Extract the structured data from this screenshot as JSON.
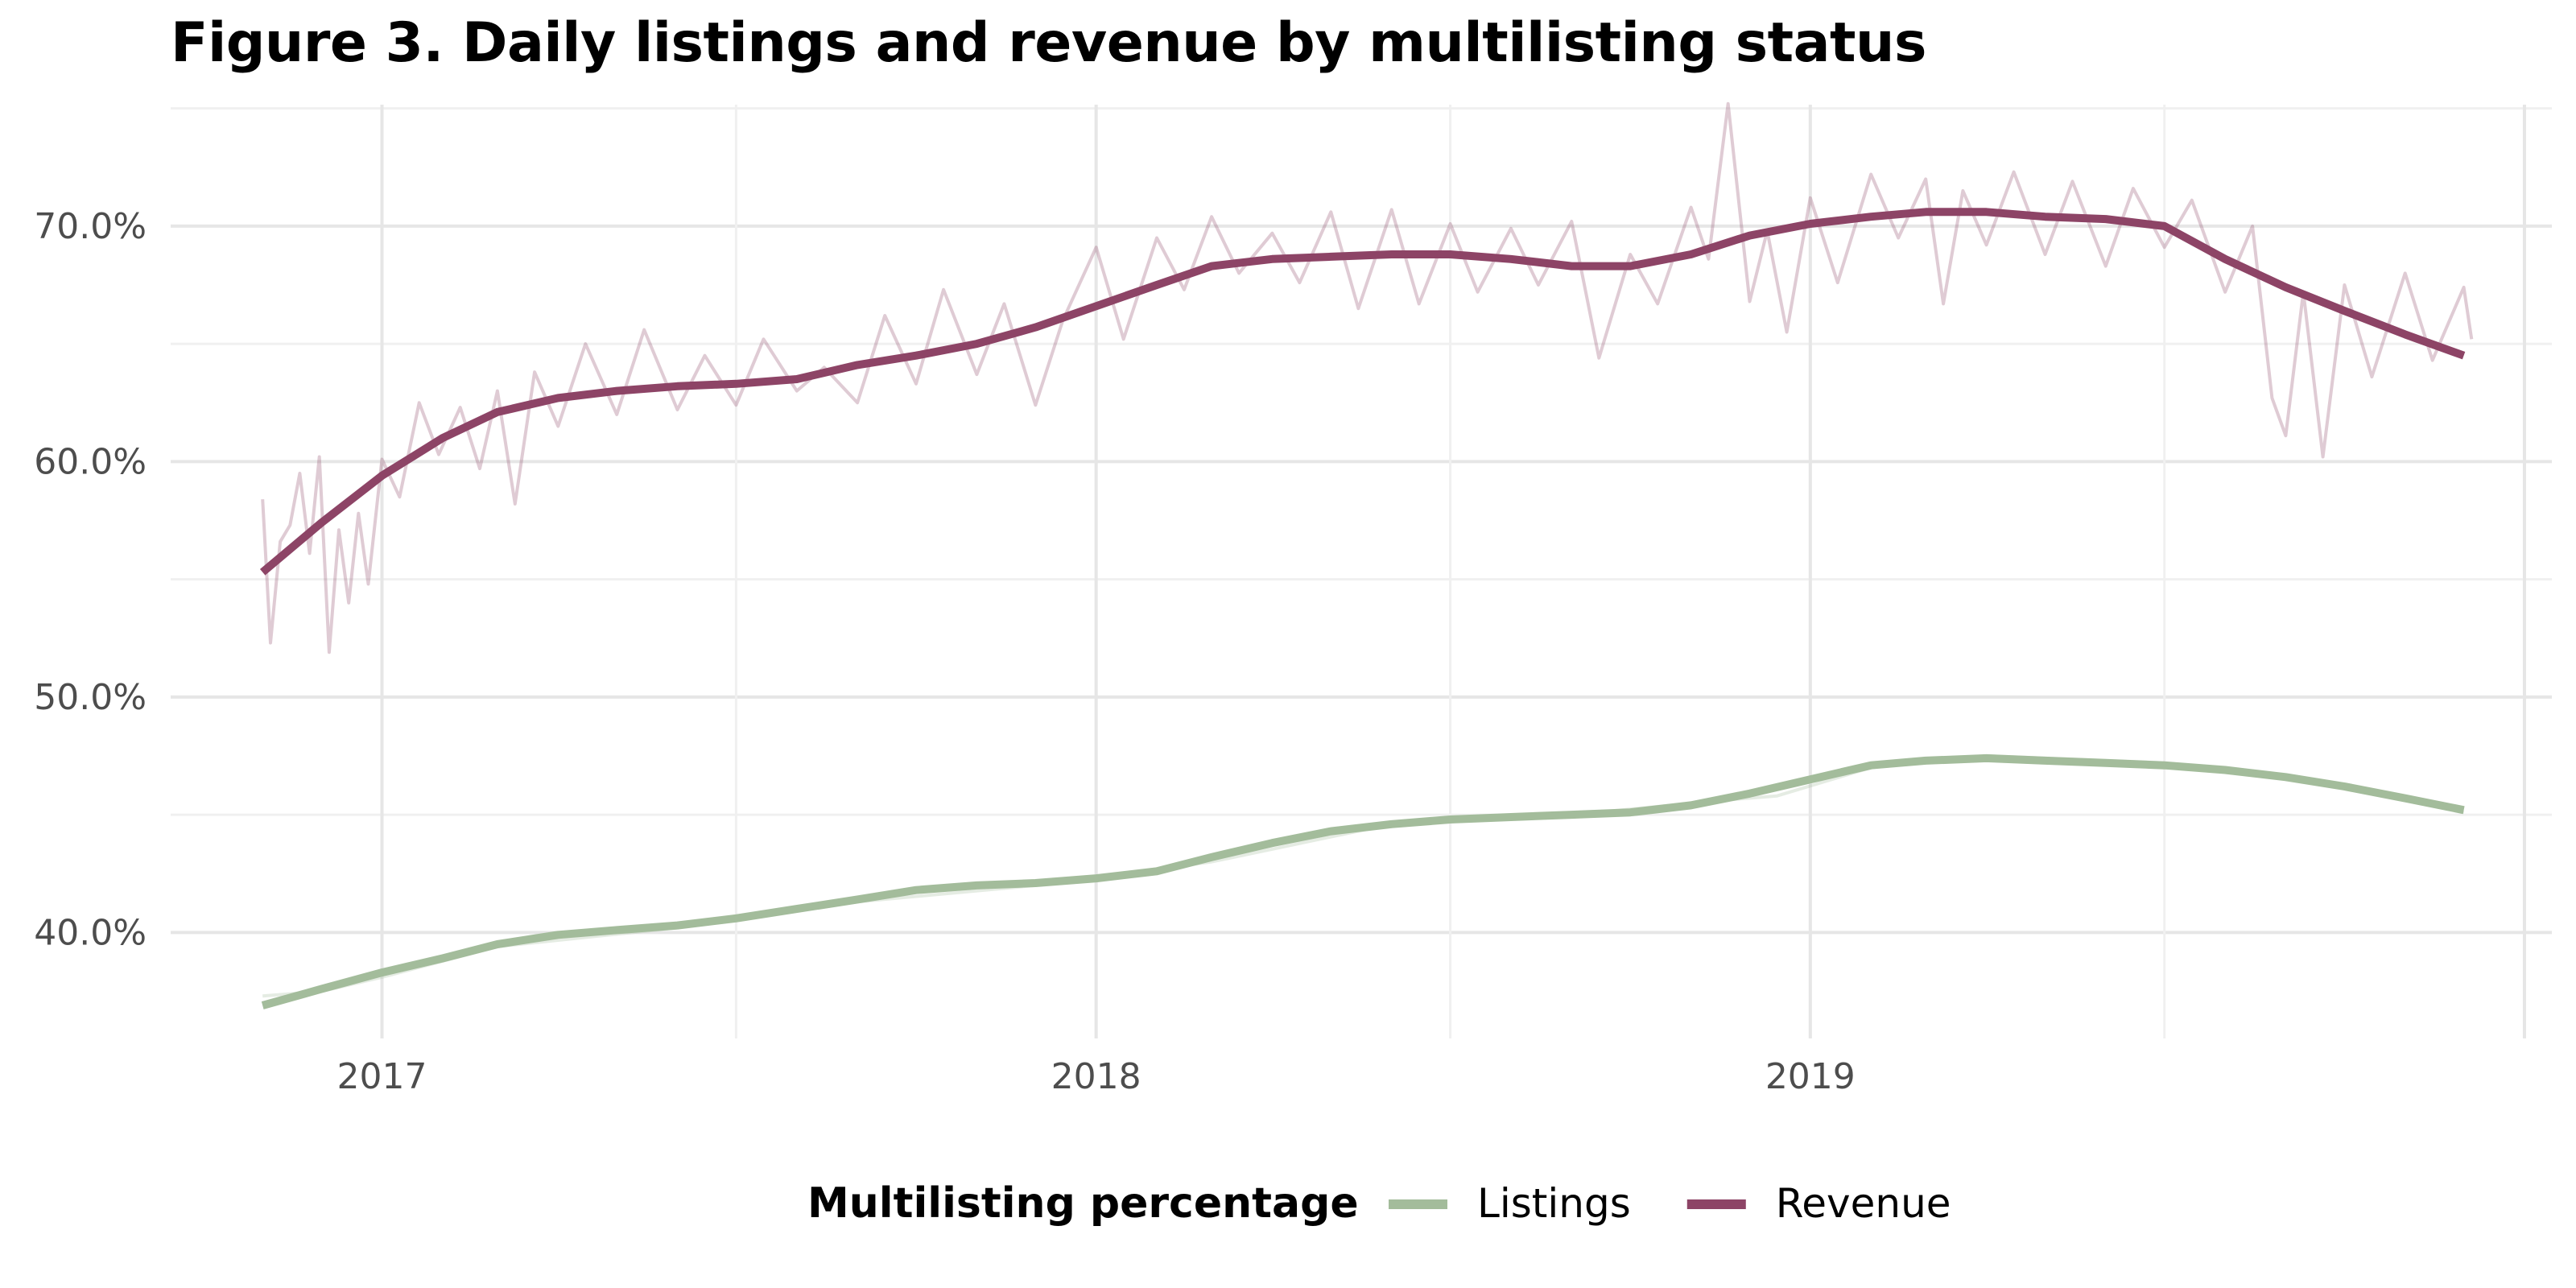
{
  "chart_data": {
    "type": "line",
    "title": "Figure 3. Daily listings and revenue by multilisting status",
    "xlabel": "",
    "ylabel": "",
    "x_ticks": [
      "2017",
      "2018",
      "2019"
    ],
    "y_ticks": [
      "40.0%",
      "50.0%",
      "60.0%",
      "70.0%"
    ],
    "ylim": [
      0.355,
      0.755
    ],
    "xlim": [
      "2016-09-15",
      "2020-01-15"
    ],
    "grid": true,
    "legend": {
      "title": "Multilisting percentage",
      "position": "bottom"
    },
    "series": [
      {
        "name": "Listings",
        "color": "#a3bc9b",
        "smoothed": [
          [
            "2016-11-01",
            0.369
          ],
          [
            "2016-12-01",
            0.376
          ],
          [
            "2017-01-01",
            0.383
          ],
          [
            "2017-02-01",
            0.389
          ],
          [
            "2017-03-01",
            0.395
          ],
          [
            "2017-04-01",
            0.399
          ],
          [
            "2017-05-01",
            0.401
          ],
          [
            "2017-06-01",
            0.403
          ],
          [
            "2017-07-01",
            0.406
          ],
          [
            "2017-08-01",
            0.41
          ],
          [
            "2017-09-01",
            0.414
          ],
          [
            "2017-10-01",
            0.418
          ],
          [
            "2017-11-01",
            0.42
          ],
          [
            "2017-12-01",
            0.421
          ],
          [
            "2018-01-01",
            0.423
          ],
          [
            "2018-02-01",
            0.426
          ],
          [
            "2018-03-01",
            0.432
          ],
          [
            "2018-04-01",
            0.438
          ],
          [
            "2018-05-01",
            0.443
          ],
          [
            "2018-06-01",
            0.446
          ],
          [
            "2018-07-01",
            0.448
          ],
          [
            "2018-08-01",
            0.449
          ],
          [
            "2018-09-01",
            0.45
          ],
          [
            "2018-10-01",
            0.451
          ],
          [
            "2018-11-01",
            0.454
          ],
          [
            "2018-12-01",
            0.459
          ],
          [
            "2019-01-01",
            0.465
          ],
          [
            "2019-02-01",
            0.471
          ],
          [
            "2019-03-01",
            0.473
          ],
          [
            "2019-04-01",
            0.474
          ],
          [
            "2019-05-01",
            0.473
          ],
          [
            "2019-06-01",
            0.472
          ],
          [
            "2019-07-01",
            0.471
          ],
          [
            "2019-08-01",
            0.469
          ],
          [
            "2019-09-01",
            0.466
          ],
          [
            "2019-10-01",
            0.462
          ],
          [
            "2019-11-01",
            0.457
          ],
          [
            "2019-12-01",
            0.452
          ]
        ],
        "daily": [
          [
            "2016-11-01",
            0.373
          ],
          [
            "2016-12-01",
            0.375
          ],
          [
            "2017-01-01",
            0.381
          ],
          [
            "2017-03-01",
            0.394
          ],
          [
            "2017-06-01",
            0.402
          ],
          [
            "2017-09-01",
            0.413
          ],
          [
            "2017-12-01",
            0.42
          ],
          [
            "2018-03-01",
            0.43
          ],
          [
            "2018-06-01",
            0.446
          ],
          [
            "2018-09-01",
            0.45
          ],
          [
            "2018-11-15",
            0.456
          ],
          [
            "2018-12-15",
            0.458
          ],
          [
            "2019-02-01",
            0.47
          ],
          [
            "2019-04-01",
            0.475
          ],
          [
            "2019-07-01",
            0.472
          ],
          [
            "2019-10-01",
            0.463
          ],
          [
            "2019-12-01",
            0.451
          ]
        ]
      },
      {
        "name": "Revenue",
        "color": "#8d4466",
        "smoothed": [
          [
            "2016-11-01",
            0.553
          ],
          [
            "2016-12-01",
            0.574
          ],
          [
            "2017-01-01",
            0.594
          ],
          [
            "2017-02-01",
            0.61
          ],
          [
            "2017-03-01",
            0.621
          ],
          [
            "2017-04-01",
            0.627
          ],
          [
            "2017-05-01",
            0.63
          ],
          [
            "2017-06-01",
            0.632
          ],
          [
            "2017-07-01",
            0.633
          ],
          [
            "2017-08-01",
            0.635
          ],
          [
            "2017-09-01",
            0.641
          ],
          [
            "2017-10-01",
            0.645
          ],
          [
            "2017-11-01",
            0.65
          ],
          [
            "2017-12-01",
            0.657
          ],
          [
            "2018-01-01",
            0.666
          ],
          [
            "2018-02-01",
            0.675
          ],
          [
            "2018-03-01",
            0.683
          ],
          [
            "2018-04-01",
            0.686
          ],
          [
            "2018-05-01",
            0.687
          ],
          [
            "2018-06-01",
            0.688
          ],
          [
            "2018-07-01",
            0.688
          ],
          [
            "2018-08-01",
            0.686
          ],
          [
            "2018-09-01",
            0.683
          ],
          [
            "2018-10-01",
            0.683
          ],
          [
            "2018-11-01",
            0.688
          ],
          [
            "2018-12-01",
            0.696
          ],
          [
            "2019-01-01",
            0.701
          ],
          [
            "2019-02-01",
            0.704
          ],
          [
            "2019-03-01",
            0.706
          ],
          [
            "2019-04-01",
            0.706
          ],
          [
            "2019-05-01",
            0.704
          ],
          [
            "2019-06-01",
            0.703
          ],
          [
            "2019-07-01",
            0.7
          ],
          [
            "2019-08-01",
            0.686
          ],
          [
            "2019-09-01",
            0.674
          ],
          [
            "2019-10-01",
            0.664
          ],
          [
            "2019-11-01",
            0.654
          ],
          [
            "2019-12-01",
            0.645
          ]
        ],
        "daily": [
          [
            "2016-11-01",
            0.584
          ],
          [
            "2016-11-05",
            0.523
          ],
          [
            "2016-11-10",
            0.566
          ],
          [
            "2016-11-15",
            0.573
          ],
          [
            "2016-11-20",
            0.595
          ],
          [
            "2016-11-25",
            0.561
          ],
          [
            "2016-11-30",
            0.602
          ],
          [
            "2016-12-05",
            0.519
          ],
          [
            "2016-12-10",
            0.571
          ],
          [
            "2016-12-15",
            0.54
          ],
          [
            "2016-12-20",
            0.578
          ],
          [
            "2016-12-25",
            0.548
          ],
          [
            "2017-01-01",
            0.601
          ],
          [
            "2017-01-10",
            0.585
          ],
          [
            "2017-01-20",
            0.625
          ],
          [
            "2017-01-30",
            0.603
          ],
          [
            "2017-02-10",
            0.623
          ],
          [
            "2017-02-20",
            0.597
          ],
          [
            "2017-03-01",
            0.63
          ],
          [
            "2017-03-10",
            0.582
          ],
          [
            "2017-03-20",
            0.638
          ],
          [
            "2017-04-01",
            0.615
          ],
          [
            "2017-04-15",
            0.65
          ],
          [
            "2017-05-01",
            0.62
          ],
          [
            "2017-05-15",
            0.656
          ],
          [
            "2017-06-01",
            0.622
          ],
          [
            "2017-06-15",
            0.645
          ],
          [
            "2017-07-01",
            0.624
          ],
          [
            "2017-07-15",
            0.652
          ],
          [
            "2017-08-01",
            0.63
          ],
          [
            "2017-08-15",
            0.64
          ],
          [
            "2017-09-01",
            0.625
          ],
          [
            "2017-09-15",
            0.662
          ],
          [
            "2017-10-01",
            0.633
          ],
          [
            "2017-10-15",
            0.673
          ],
          [
            "2017-11-01",
            0.637
          ],
          [
            "2017-11-15",
            0.667
          ],
          [
            "2017-12-01",
            0.624
          ],
          [
            "2017-12-15",
            0.66
          ],
          [
            "2018-01-01",
            0.691
          ],
          [
            "2018-01-15",
            0.652
          ],
          [
            "2018-02-01",
            0.695
          ],
          [
            "2018-02-15",
            0.673
          ],
          [
            "2018-03-01",
            0.704
          ],
          [
            "2018-03-15",
            0.68
          ],
          [
            "2018-04-01",
            0.697
          ],
          [
            "2018-04-15",
            0.676
          ],
          [
            "2018-05-01",
            0.706
          ],
          [
            "2018-05-15",
            0.665
          ],
          [
            "2018-06-01",
            0.707
          ],
          [
            "2018-06-15",
            0.667
          ],
          [
            "2018-07-01",
            0.701
          ],
          [
            "2018-07-15",
            0.672
          ],
          [
            "2018-08-01",
            0.699
          ],
          [
            "2018-08-15",
            0.675
          ],
          [
            "2018-09-01",
            0.702
          ],
          [
            "2018-09-15",
            0.644
          ],
          [
            "2018-10-01",
            0.688
          ],
          [
            "2018-10-15",
            0.667
          ],
          [
            "2018-11-01",
            0.708
          ],
          [
            "2018-11-10",
            0.686
          ],
          [
            "2018-11-20",
            0.752
          ],
          [
            "2018-12-01",
            0.668
          ],
          [
            "2018-12-10",
            0.698
          ],
          [
            "2018-12-20",
            0.655
          ],
          [
            "2019-01-01",
            0.712
          ],
          [
            "2019-01-15",
            0.676
          ],
          [
            "2019-02-01",
            0.722
          ],
          [
            "2019-02-15",
            0.695
          ],
          [
            "2019-03-01",
            0.72
          ],
          [
            "2019-03-10",
            0.667
          ],
          [
            "2019-03-20",
            0.715
          ],
          [
            "2019-04-01",
            0.692
          ],
          [
            "2019-04-15",
            0.723
          ],
          [
            "2019-05-01",
            0.688
          ],
          [
            "2019-05-15",
            0.719
          ],
          [
            "2019-06-01",
            0.683
          ],
          [
            "2019-06-15",
            0.716
          ],
          [
            "2019-07-01",
            0.691
          ],
          [
            "2019-07-15",
            0.711
          ],
          [
            "2019-08-01",
            0.672
          ],
          [
            "2019-08-15",
            0.7
          ],
          [
            "2019-08-25",
            0.627
          ],
          [
            "2019-09-01",
            0.611
          ],
          [
            "2019-09-10",
            0.672
          ],
          [
            "2019-09-20",
            0.602
          ],
          [
            "2019-10-01",
            0.675
          ],
          [
            "2019-10-15",
            0.636
          ],
          [
            "2019-11-01",
            0.68
          ],
          [
            "2019-11-15",
            0.643
          ],
          [
            "2019-12-01",
            0.674
          ],
          [
            "2019-12-05",
            0.652
          ]
        ]
      }
    ]
  }
}
